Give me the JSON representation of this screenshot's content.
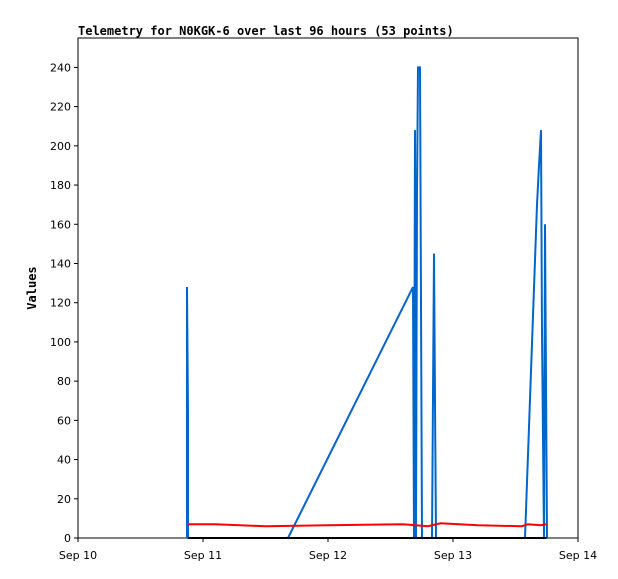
{
  "chart_data": {
    "type": "line",
    "title": "Telemetry for N0KGK-6 over last 96 hours (53 points)",
    "y_label": "Values",
    "xlim": [
      0,
      4
    ],
    "xticks": [
      {
        "value": 0,
        "label": "Sep 10"
      },
      {
        "value": 1,
        "label": "Sep 11"
      },
      {
        "value": 2,
        "label": "Sep 12"
      },
      {
        "value": 3,
        "label": "Sep 13"
      },
      {
        "value": 4,
        "label": "Sep 14"
      }
    ],
    "ylim": [
      0,
      255
    ],
    "yticks": [
      0,
      20,
      40,
      60,
      80,
      100,
      120,
      140,
      160,
      180,
      200,
      220,
      240
    ],
    "series": [
      {
        "color": "#0066cc",
        "x": [
          0.872,
          0.872,
          0.88,
          0.88,
          1.68,
          2.68,
          2.688,
          2.696,
          2.704,
          2.712,
          2.72,
          2.736,
          2.744,
          2.752,
          2.832,
          2.848,
          2.856,
          2.864,
          3.576,
          3.672,
          3.688,
          3.704,
          3.712,
          3.728,
          3.736,
          3.752
        ],
        "values": [
          0,
          128,
          64,
          0,
          0,
          128,
          0,
          208,
          0,
          176,
          240,
          240,
          120,
          0,
          0,
          145,
          70,
          0,
          0,
          170,
          190,
          208,
          104,
          0,
          160,
          0
        ]
      },
      {
        "color": "#ff0000",
        "x": [
          0.88,
          1.1,
          1.5,
          2.0,
          2.6,
          2.8,
          2.9,
          3.2,
          3.55,
          3.6,
          3.7,
          3.75
        ],
        "values": [
          7,
          7,
          6,
          6.5,
          7,
          6,
          7.5,
          6.5,
          6,
          7,
          6.5,
          7
        ]
      },
      {
        "color": "#000000",
        "x": [
          0.88,
          3.75
        ],
        "values": [
          0,
          0
        ]
      }
    ]
  }
}
